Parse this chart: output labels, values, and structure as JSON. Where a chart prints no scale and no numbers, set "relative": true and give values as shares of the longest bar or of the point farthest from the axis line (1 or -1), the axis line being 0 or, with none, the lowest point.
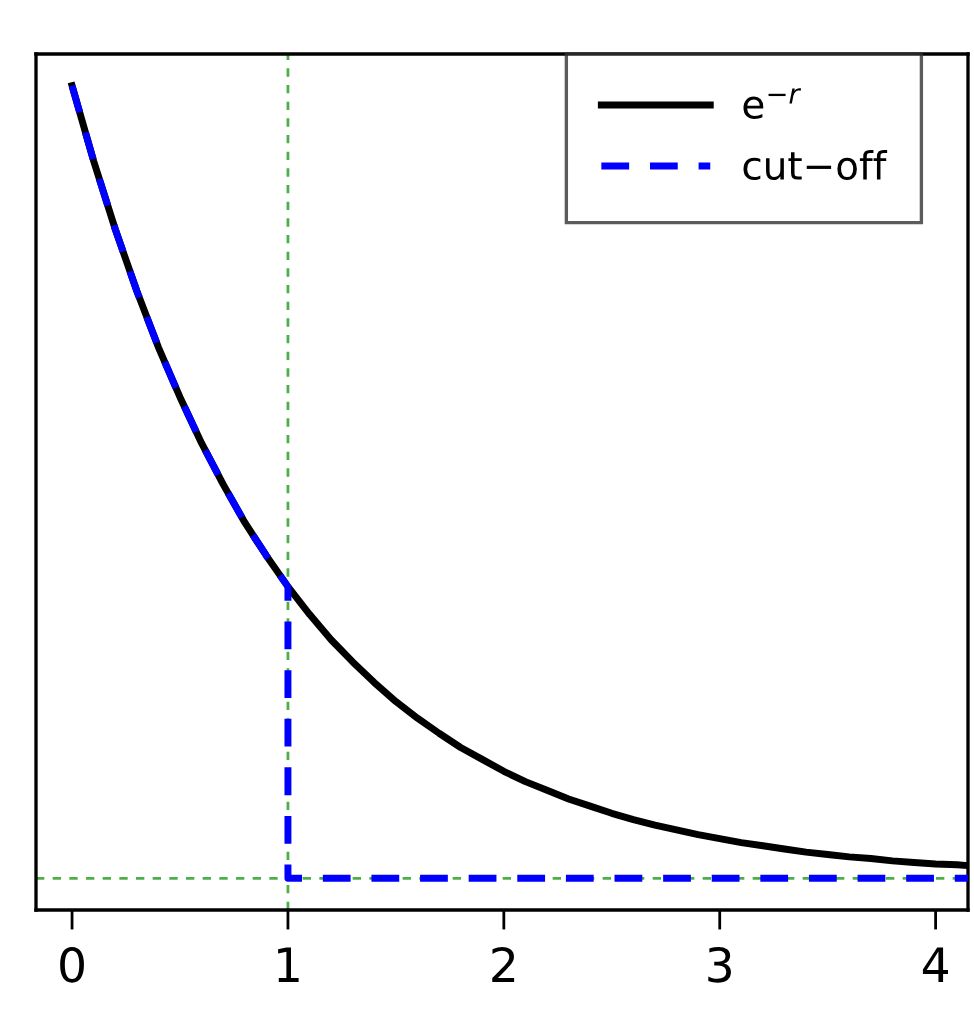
{
  "chart_data": {
    "type": "line",
    "relative": true,
    "xlim": [
      -0.167,
      4.15
    ],
    "xticks": [
      0,
      1,
      2,
      3,
      4
    ],
    "legend": "top right",
    "grid": false,
    "marker": "none",
    "series": [
      {
        "name": "e$^{−r}$",
        "color": "#000000",
        "line_style": "solid",
        "x": [
          0,
          0.1,
          0.2,
          0.3,
          0.4,
          0.5,
          0.6,
          0.7,
          0.8,
          0.9,
          1,
          1.1,
          1.2,
          1.3,
          1.4,
          1.5,
          1.6,
          1.7,
          1.8,
          1.9,
          2,
          2.1,
          2.2,
          2.3,
          2.4,
          2.5,
          2.6,
          2.7,
          2.8,
          2.9,
          3,
          3.1,
          3.2,
          3.3,
          3.4,
          3.5,
          3.6,
          3.7,
          3.8,
          3.9,
          4,
          4.1,
          4.15
        ],
        "values": [
          1,
          0.905,
          0.819,
          0.741,
          0.67,
          0.607,
          0.549,
          0.497,
          0.449,
          0.407,
          0.368,
          0.333,
          0.301,
          0.273,
          0.247,
          0.223,
          0.202,
          0.183,
          0.165,
          0.15,
          0.135,
          0.122,
          0.111,
          0.1,
          0.091,
          0.082,
          0.074,
          0.067,
          0.061,
          0.055,
          0.05,
          0.045,
          0.041,
          0.037,
          0.033,
          0.03,
          0.027,
          0.025,
          0.022,
          0.02,
          0.018,
          0.017,
          0.016
        ]
      },
      {
        "name": "cut−off",
        "color": "#0000ff",
        "line_style": "dashed",
        "x": [
          0,
          0.1,
          0.2,
          0.3,
          0.4,
          0.5,
          0.6,
          0.7,
          0.8,
          0.9,
          1,
          1,
          4.15
        ],
        "values": [
          1,
          0.905,
          0.819,
          0.741,
          0.67,
          0.607,
          0.549,
          0.497,
          0.449,
          0.407,
          0.368,
          0,
          0
        ]
      }
    ],
    "ref_lines": [
      {
        "axis": "x",
        "value": 1,
        "color": "#4daf4a",
        "line_style": "dashed"
      },
      {
        "axis": "y",
        "value": 0,
        "color": "#4daf4a",
        "line_style": "dashed"
      }
    ]
  }
}
